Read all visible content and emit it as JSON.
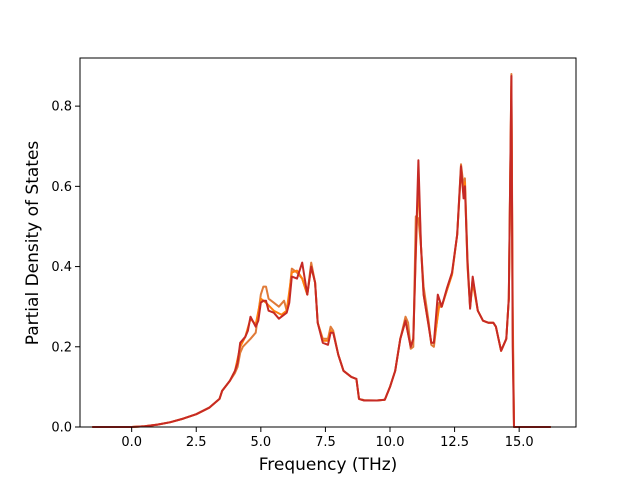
{
  "chart_data": {
    "type": "line",
    "xlabel": "Frequency (THz)",
    "ylabel": "Partial Density of States",
    "xlim": [
      -2.0,
      17.2
    ],
    "ylim": [
      0.0,
      0.92
    ],
    "x_ticks": [
      "0.0",
      "2.5",
      "5.0",
      "7.5",
      "10.0",
      "12.5",
      "15.0"
    ],
    "y_ticks": [
      "0.0",
      "0.2",
      "0.4",
      "0.6",
      "0.8"
    ],
    "grid": false,
    "legend": "none",
    "series": [
      {
        "color": "#e07b39",
        "points": [
          [
            -1.5,
            0.0
          ],
          [
            0.0,
            0.0
          ],
          [
            0.5,
            0.002
          ],
          [
            1.0,
            0.006
          ],
          [
            1.5,
            0.012
          ],
          [
            2.0,
            0.021
          ],
          [
            2.5,
            0.032
          ],
          [
            3.0,
            0.048
          ],
          [
            3.4,
            0.07
          ],
          [
            3.5,
            0.09
          ],
          [
            3.8,
            0.115
          ],
          [
            4.0,
            0.135
          ],
          [
            4.1,
            0.15
          ],
          [
            4.2,
            0.185
          ],
          [
            4.3,
            0.2
          ],
          [
            4.6,
            0.22
          ],
          [
            4.8,
            0.235
          ],
          [
            5.0,
            0.33
          ],
          [
            5.1,
            0.35
          ],
          [
            5.2,
            0.35
          ],
          [
            5.3,
            0.32
          ],
          [
            5.5,
            0.31
          ],
          [
            5.7,
            0.3
          ],
          [
            5.9,
            0.315
          ],
          [
            6.0,
            0.29
          ],
          [
            6.1,
            0.33
          ],
          [
            6.2,
            0.395
          ],
          [
            6.4,
            0.385
          ],
          [
            6.6,
            0.37
          ],
          [
            6.8,
            0.33
          ],
          [
            6.95,
            0.41
          ],
          [
            7.1,
            0.36
          ],
          [
            7.2,
            0.26
          ],
          [
            7.4,
            0.22
          ],
          [
            7.6,
            0.22
          ],
          [
            7.7,
            0.25
          ],
          [
            7.8,
            0.24
          ],
          [
            8.0,
            0.18
          ],
          [
            8.2,
            0.14
          ],
          [
            8.5,
            0.125
          ],
          [
            8.7,
            0.12
          ],
          [
            8.8,
            0.07
          ],
          [
            9.0,
            0.067
          ],
          [
            9.5,
            0.066
          ],
          [
            9.8,
            0.068
          ],
          [
            10.0,
            0.1
          ],
          [
            10.2,
            0.14
          ],
          [
            10.4,
            0.22
          ],
          [
            10.6,
            0.275
          ],
          [
            10.7,
            0.26
          ],
          [
            10.8,
            0.195
          ],
          [
            10.9,
            0.2
          ],
          [
            11.0,
            0.525
          ],
          [
            11.1,
            0.52
          ],
          [
            11.2,
            0.45
          ],
          [
            11.3,
            0.35
          ],
          [
            11.5,
            0.26
          ],
          [
            11.6,
            0.205
          ],
          [
            11.7,
            0.2
          ],
          [
            11.9,
            0.31
          ],
          [
            12.0,
            0.3
          ],
          [
            12.2,
            0.34
          ],
          [
            12.4,
            0.38
          ],
          [
            12.6,
            0.48
          ],
          [
            12.75,
            0.655
          ],
          [
            12.85,
            0.6
          ],
          [
            12.9,
            0.62
          ],
          [
            13.0,
            0.42
          ],
          [
            13.1,
            0.3
          ],
          [
            13.2,
            0.37
          ],
          [
            13.4,
            0.29
          ],
          [
            13.6,
            0.265
          ],
          [
            13.8,
            0.26
          ],
          [
            14.0,
            0.26
          ],
          [
            14.1,
            0.25
          ],
          [
            14.2,
            0.22
          ],
          [
            14.3,
            0.19
          ],
          [
            14.5,
            0.22
          ],
          [
            14.6,
            0.32
          ],
          [
            14.7,
            0.88
          ],
          [
            14.75,
            0.3
          ],
          [
            14.8,
            0.0
          ],
          [
            16.2,
            0.0
          ]
        ]
      },
      {
        "color": "#ff7f0e",
        "points": [
          [
            -1.5,
            0.0
          ],
          [
            0.0,
            0.0
          ],
          [
            0.5,
            0.002
          ],
          [
            1.0,
            0.006
          ],
          [
            1.5,
            0.012
          ],
          [
            2.0,
            0.021
          ],
          [
            2.5,
            0.032
          ],
          [
            3.0,
            0.048
          ],
          [
            3.4,
            0.07
          ],
          [
            3.5,
            0.09
          ],
          [
            3.8,
            0.115
          ],
          [
            4.0,
            0.14
          ],
          [
            4.2,
            0.2
          ],
          [
            4.4,
            0.225
          ],
          [
            4.6,
            0.27
          ],
          [
            4.8,
            0.255
          ],
          [
            5.0,
            0.32
          ],
          [
            5.2,
            0.31
          ],
          [
            5.5,
            0.29
          ],
          [
            5.8,
            0.28
          ],
          [
            6.0,
            0.29
          ],
          [
            6.2,
            0.385
          ],
          [
            6.4,
            0.39
          ],
          [
            6.6,
            0.37
          ],
          [
            6.8,
            0.33
          ],
          [
            6.95,
            0.4
          ],
          [
            7.1,
            0.36
          ],
          [
            7.2,
            0.26
          ],
          [
            7.4,
            0.215
          ],
          [
            7.6,
            0.215
          ],
          [
            7.7,
            0.24
          ],
          [
            7.8,
            0.235
          ],
          [
            8.0,
            0.18
          ],
          [
            8.2,
            0.14
          ],
          [
            8.5,
            0.125
          ],
          [
            8.7,
            0.12
          ],
          [
            8.8,
            0.07
          ],
          [
            9.0,
            0.066
          ],
          [
            9.5,
            0.066
          ],
          [
            9.8,
            0.068
          ],
          [
            10.0,
            0.1
          ],
          [
            10.2,
            0.14
          ],
          [
            10.4,
            0.22
          ],
          [
            10.6,
            0.265
          ],
          [
            10.8,
            0.2
          ],
          [
            10.9,
            0.22
          ],
          [
            11.0,
            0.43
          ],
          [
            11.1,
            0.62
          ],
          [
            11.2,
            0.45
          ],
          [
            11.3,
            0.33
          ],
          [
            11.5,
            0.25
          ],
          [
            11.6,
            0.21
          ],
          [
            11.7,
            0.21
          ],
          [
            11.9,
            0.3
          ],
          [
            12.0,
            0.3
          ],
          [
            12.2,
            0.34
          ],
          [
            12.4,
            0.38
          ],
          [
            12.6,
            0.48
          ],
          [
            12.75,
            0.64
          ],
          [
            12.85,
            0.58
          ],
          [
            12.9,
            0.61
          ],
          [
            13.0,
            0.4
          ],
          [
            13.1,
            0.3
          ],
          [
            13.2,
            0.36
          ],
          [
            13.4,
            0.29
          ],
          [
            13.6,
            0.265
          ],
          [
            13.8,
            0.26
          ],
          [
            14.0,
            0.26
          ],
          [
            14.1,
            0.25
          ],
          [
            14.2,
            0.22
          ],
          [
            14.3,
            0.19
          ],
          [
            14.5,
            0.22
          ],
          [
            14.6,
            0.32
          ],
          [
            14.7,
            0.85
          ],
          [
            14.75,
            0.25
          ],
          [
            14.8,
            0.0
          ],
          [
            16.2,
            0.0
          ]
        ]
      },
      {
        "color": "#c62a25",
        "points": [
          [
            -1.5,
            0.0
          ],
          [
            0.0,
            0.0
          ],
          [
            0.5,
            0.002
          ],
          [
            1.0,
            0.006
          ],
          [
            1.5,
            0.012
          ],
          [
            2.0,
            0.021
          ],
          [
            2.5,
            0.032
          ],
          [
            3.0,
            0.048
          ],
          [
            3.4,
            0.07
          ],
          [
            3.5,
            0.09
          ],
          [
            3.8,
            0.115
          ],
          [
            4.0,
            0.14
          ],
          [
            4.1,
            0.16
          ],
          [
            4.2,
            0.21
          ],
          [
            4.4,
            0.225
          ],
          [
            4.5,
            0.24
          ],
          [
            4.6,
            0.275
          ],
          [
            4.8,
            0.25
          ],
          [
            4.9,
            0.265
          ],
          [
            5.0,
            0.31
          ],
          [
            5.1,
            0.315
          ],
          [
            5.2,
            0.315
          ],
          [
            5.3,
            0.29
          ],
          [
            5.5,
            0.285
          ],
          [
            5.7,
            0.27
          ],
          [
            5.9,
            0.28
          ],
          [
            6.0,
            0.285
          ],
          [
            6.1,
            0.31
          ],
          [
            6.2,
            0.375
          ],
          [
            6.4,
            0.37
          ],
          [
            6.6,
            0.41
          ],
          [
            6.8,
            0.33
          ],
          [
            6.95,
            0.4
          ],
          [
            7.1,
            0.36
          ],
          [
            7.2,
            0.26
          ],
          [
            7.4,
            0.21
          ],
          [
            7.6,
            0.205
          ],
          [
            7.7,
            0.235
          ],
          [
            7.8,
            0.235
          ],
          [
            8.0,
            0.18
          ],
          [
            8.2,
            0.14
          ],
          [
            8.5,
            0.125
          ],
          [
            8.7,
            0.12
          ],
          [
            8.8,
            0.07
          ],
          [
            9.0,
            0.066
          ],
          [
            9.5,
            0.066
          ],
          [
            9.8,
            0.068
          ],
          [
            10.0,
            0.1
          ],
          [
            10.2,
            0.14
          ],
          [
            10.4,
            0.22
          ],
          [
            10.6,
            0.265
          ],
          [
            10.8,
            0.2
          ],
          [
            10.9,
            0.22
          ],
          [
            11.0,
            0.44
          ],
          [
            11.1,
            0.665
          ],
          [
            11.2,
            0.45
          ],
          [
            11.3,
            0.33
          ],
          [
            11.5,
            0.25
          ],
          [
            11.6,
            0.21
          ],
          [
            11.7,
            0.21
          ],
          [
            11.85,
            0.33
          ],
          [
            12.0,
            0.3
          ],
          [
            12.2,
            0.345
          ],
          [
            12.4,
            0.385
          ],
          [
            12.6,
            0.48
          ],
          [
            12.75,
            0.65
          ],
          [
            12.85,
            0.57
          ],
          [
            12.9,
            0.6
          ],
          [
            13.0,
            0.41
          ],
          [
            13.1,
            0.295
          ],
          [
            13.2,
            0.375
          ],
          [
            13.4,
            0.29
          ],
          [
            13.6,
            0.265
          ],
          [
            13.8,
            0.26
          ],
          [
            14.0,
            0.26
          ],
          [
            14.1,
            0.25
          ],
          [
            14.2,
            0.22
          ],
          [
            14.3,
            0.19
          ],
          [
            14.5,
            0.22
          ],
          [
            14.6,
            0.32
          ],
          [
            14.7,
            0.875
          ],
          [
            14.75,
            0.2
          ],
          [
            14.8,
            0.0
          ],
          [
            16.2,
            0.0
          ]
        ]
      }
    ]
  }
}
